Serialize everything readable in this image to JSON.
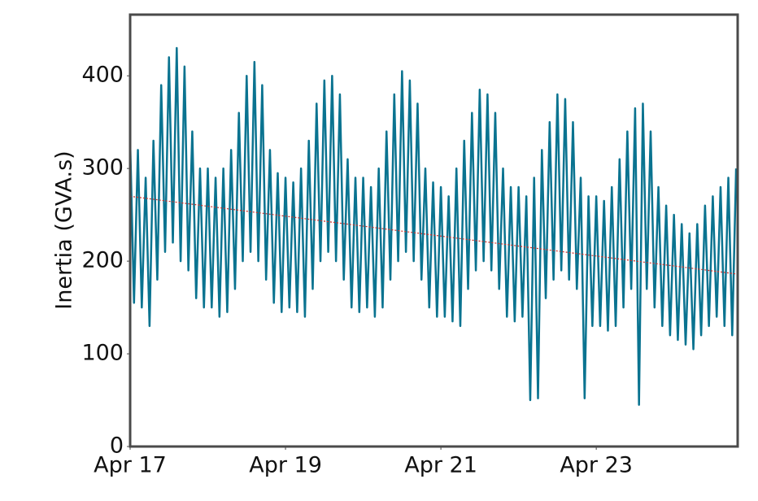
{
  "chart_data": {
    "type": "line",
    "ylabel": "Inertia (GVA.s)",
    "xlim": [
      0,
      7.82
    ],
    "ylim": [
      0,
      466
    ],
    "xticks": [
      {
        "value": 0,
        "label": "Apr 17"
      },
      {
        "value": 2,
        "label": "Apr 19"
      },
      {
        "value": 4,
        "label": "Apr 21"
      },
      {
        "value": 6,
        "label": "Apr 23"
      }
    ],
    "yticks": [
      0,
      100,
      200,
      300,
      400
    ],
    "grid": false,
    "x": [
      0,
      0.05,
      0.1,
      0.15,
      0.2,
      0.25,
      0.3,
      0.35,
      0.4,
      0.45,
      0.5,
      0.55,
      0.6,
      0.65,
      0.7,
      0.75,
      0.8,
      0.85,
      0.9,
      0.95,
      1,
      1.05,
      1.1,
      1.15,
      1.2,
      1.25,
      1.3,
      1.35,
      1.4,
      1.45,
      1.5,
      1.55,
      1.6,
      1.65,
      1.7,
      1.75,
      1.8,
      1.85,
      1.9,
      1.95,
      2,
      2.05,
      2.1,
      2.15,
      2.2,
      2.25,
      2.3,
      2.35,
      2.4,
      2.45,
      2.5,
      2.55,
      2.6,
      2.65,
      2.7,
      2.75,
      2.8,
      2.85,
      2.9,
      2.95,
      3,
      3.05,
      3.1,
      3.15,
      3.2,
      3.25,
      3.3,
      3.35,
      3.4,
      3.45,
      3.5,
      3.55,
      3.6,
      3.65,
      3.7,
      3.75,
      3.8,
      3.85,
      3.9,
      3.95,
      4,
      4.05,
      4.1,
      4.15,
      4.2,
      4.25,
      4.3,
      4.35,
      4.4,
      4.45,
      4.5,
      4.55,
      4.6,
      4.65,
      4.7,
      4.75,
      4.8,
      4.85,
      4.9,
      4.95,
      5,
      5.05,
      5.1,
      5.15,
      5.2,
      5.25,
      5.3,
      5.35,
      5.4,
      5.45,
      5.5,
      5.55,
      5.6,
      5.65,
      5.7,
      5.75,
      5.8,
      5.85,
      5.9,
      5.95,
      6,
      6.05,
      6.1,
      6.15,
      6.2,
      6.25,
      6.3,
      6.35,
      6.4,
      6.45,
      6.5,
      6.55,
      6.6,
      6.65,
      6.7,
      6.75,
      6.8,
      6.85,
      6.9,
      6.95,
      7,
      7.05,
      7.1,
      7.15,
      7.2,
      7.25,
      7.3,
      7.35,
      7.4,
      7.45,
      7.5,
      7.55,
      7.6,
      7.65,
      7.7,
      7.75,
      7.8
    ],
    "series": [
      {
        "color": "#0a7390",
        "width": 2.5,
        "values": [
          330,
          155,
          320,
          150,
          290,
          130,
          330,
          180,
          390,
          210,
          420,
          220,
          430,
          200,
          410,
          190,
          340,
          160,
          300,
          150,
          300,
          150,
          290,
          140,
          300,
          145,
          320,
          170,
          360,
          200,
          400,
          210,
          415,
          200,
          390,
          180,
          320,
          155,
          295,
          145,
          290,
          150,
          285,
          145,
          300,
          140,
          330,
          170,
          370,
          200,
          395,
          210,
          400,
          200,
          380,
          180,
          310,
          150,
          290,
          145,
          290,
          150,
          280,
          140,
          300,
          150,
          340,
          180,
          380,
          200,
          405,
          210,
          395,
          200,
          370,
          180,
          300,
          150,
          285,
          140,
          280,
          140,
          270,
          135,
          300,
          130,
          330,
          170,
          360,
          190,
          385,
          200,
          380,
          190,
          360,
          170,
          300,
          140,
          280,
          135,
          280,
          140,
          270,
          50,
          290,
          52,
          320,
          160,
          350,
          180,
          380,
          190,
          375,
          180,
          350,
          170,
          290,
          52,
          270,
          130,
          270,
          130,
          265,
          125,
          280,
          130,
          310,
          150,
          340,
          170,
          365,
          45,
          370,
          170,
          340,
          150,
          280,
          130,
          260,
          120,
          250,
          115,
          240,
          110,
          230,
          105,
          240,
          120,
          260,
          130,
          270,
          140,
          280,
          130,
          290,
          120,
          300
        ]
      },
      {
        "color": "#d0302a",
        "width": 1.2,
        "dash": "2 2",
        "x": [
          0,
          7.82
        ],
        "values": [
          270,
          186
        ]
      }
    ]
  }
}
